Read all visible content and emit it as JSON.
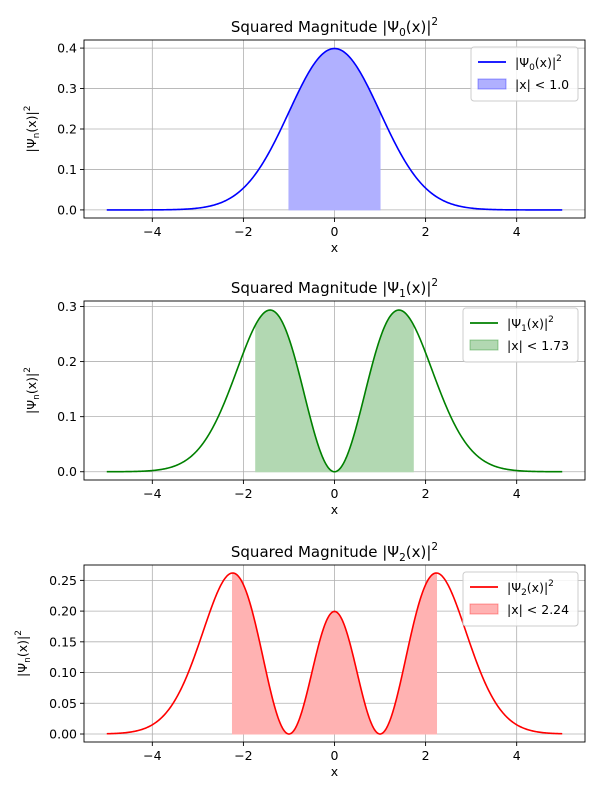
{
  "chart_data": [
    {
      "type": "line",
      "title_base": "Squared Magnitude |Ψ",
      "title_sub": "0",
      "title_tail": "(x)|",
      "title_sup": "2",
      "xlabel": "x",
      "ylabel_base": "|Ψ",
      "ylabel_sub": "n",
      "ylabel_tail": "(x)|",
      "ylabel_sup": "2",
      "xlim": [
        -5.5,
        5.5
      ],
      "ylim": [
        -0.02,
        0.42
      ],
      "xticks": [
        -4,
        -2,
        0,
        2,
        4
      ],
      "xtick_labels": [
        "−4",
        "−2",
        "0",
        "2",
        "4"
      ],
      "yticks": [
        0.0,
        0.1,
        0.2,
        0.3,
        0.4
      ],
      "ytick_labels": [
        "0.0",
        "0.1",
        "0.2",
        "0.3",
        "0.4"
      ],
      "grid": true,
      "legend_position": "top-right",
      "color": "#0000ff",
      "fill_color": "#b0b0ff",
      "n": 0,
      "x_range": [
        -5,
        5
      ],
      "fill_range": [
        -1.0,
        1.0
      ],
      "series": [
        {
          "name_base": "|Ψ",
          "name_sub": "0",
          "name_tail": "(x)|",
          "name_sup": "2",
          "x": [
            -5,
            -4.5,
            -4,
            -3.5,
            -3,
            -2.5,
            -2,
            -1.5,
            -1,
            -0.5,
            0,
            0.5,
            1,
            1.5,
            2,
            2.5,
            3,
            3.5,
            4,
            4.5,
            5
          ],
          "y": [
            0.0,
            0.0,
            0.0001,
            0.0009,
            0.0044,
            0.0175,
            0.054,
            0.1295,
            0.242,
            0.3521,
            0.3989,
            0.3521,
            0.242,
            0.1295,
            0.054,
            0.0175,
            0.0044,
            0.0009,
            0.0001,
            0.0,
            0.0
          ]
        }
      ],
      "fill_label": "|x| < 1.0"
    },
    {
      "type": "line",
      "title_base": "Squared Magnitude |Ψ",
      "title_sub": "1",
      "title_tail": "(x)|",
      "title_sup": "2",
      "xlabel": "x",
      "ylabel_base": "|Ψ",
      "ylabel_sub": "n",
      "ylabel_tail": "(x)|",
      "ylabel_sup": "2",
      "xlim": [
        -5.5,
        5.5
      ],
      "ylim": [
        -0.015,
        0.31
      ],
      "xticks": [
        -4,
        -2,
        0,
        2,
        4
      ],
      "xtick_labels": [
        "−4",
        "−2",
        "0",
        "2",
        "4"
      ],
      "yticks": [
        0.0,
        0.1,
        0.2,
        0.3
      ],
      "ytick_labels": [
        "0.0",
        "0.1",
        "0.2",
        "0.3"
      ],
      "grid": true,
      "legend_position": "top-right",
      "color": "#008000",
      "fill_color": "#b2d8b2",
      "n": 1,
      "x_range": [
        -5,
        5
      ],
      "fill_range": [
        -1.73,
        1.73
      ],
      "series": [
        {
          "name_base": "|Ψ",
          "name_sub": "1",
          "name_tail": "(x)|",
          "name_sup": "2",
          "x": [
            -5,
            -4,
            -3,
            -2.5,
            -2,
            -1.5,
            -1.41,
            -1,
            -0.5,
            0,
            0.5,
            1,
            1.41,
            1.5,
            2,
            2.5,
            3,
            3.5,
            4,
            5
          ],
          "y": [
            0.0,
            0.0013,
            0.04,
            0.1094,
            0.216,
            0.2913,
            0.2931,
            0.242,
            0.088,
            0.0,
            0.088,
            0.242,
            0.2931,
            0.2913,
            0.216,
            0.1094,
            0.04,
            0.0111,
            0.0013,
            0.0
          ]
        }
      ],
      "fill_label": "|x| < 1.73"
    },
    {
      "type": "line",
      "title_base": "Squared Magnitude |Ψ",
      "title_sub": "2",
      "title_tail": "(x)|",
      "title_sup": "2",
      "xlabel": "x",
      "ylabel_base": "|Ψ",
      "ylabel_sub": "n",
      "ylabel_tail": "(x)|",
      "ylabel_sup": "2",
      "xlim": [
        -5.5,
        5.5
      ],
      "ylim": [
        -0.013,
        0.275
      ],
      "xticks": [
        -4,
        -2,
        0,
        2,
        4
      ],
      "xtick_labels": [
        "−4",
        "−2",
        "0",
        "2",
        "4"
      ],
      "yticks": [
        0.0,
        0.05,
        0.1,
        0.15,
        0.2,
        0.25
      ],
      "ytick_labels": [
        "0.00",
        "0.05",
        "0.10",
        "0.15",
        "0.20",
        "0.25"
      ],
      "grid": true,
      "legend_position": "top-right",
      "color": "#ff0000",
      "fill_color": "#ffb2b2",
      "n": 2,
      "x_range": [
        -5,
        5
      ],
      "fill_range": [
        -2.24,
        2.24
      ],
      "series": [
        {
          "name_base": "|Ψ",
          "name_sub": "2",
          "name_tail": "(x)|",
          "name_sup": "2",
          "x": [
            -5,
            -4,
            -3,
            -2.5,
            -2.24,
            -2,
            -1.5,
            -1,
            -0.5,
            0,
            0.5,
            1,
            1.5,
            2,
            2.24,
            2.5,
            3,
            4,
            5
          ],
          "y": [
            0.0,
            0.0115,
            0.115,
            0.2364,
            0.2615,
            0.243,
            0.0809,
            0.0,
            0.1245,
            0.1995,
            0.1245,
            0.0,
            0.0809,
            0.243,
            0.2615,
            0.2364,
            0.115,
            0.0115,
            0.0
          ]
        }
      ],
      "fill_label": "|x| < 2.24"
    }
  ]
}
